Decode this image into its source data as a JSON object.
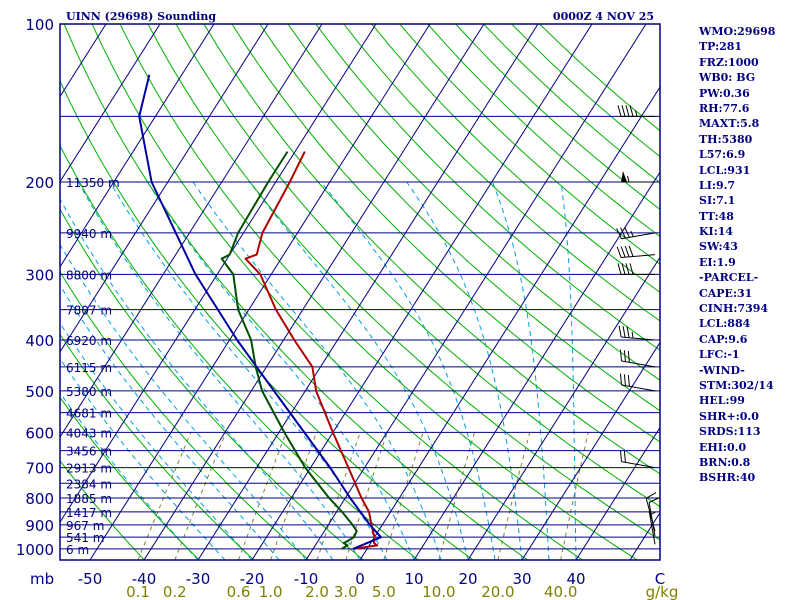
{
  "title": "UINN (29698) Sounding",
  "datetime": "0000Z  4 NOV 25",
  "units_label": "mb",
  "mixing_ratio_unit": "g/kg",
  "colors": {
    "frame": "#000080",
    "isobar": "#000080",
    "isotherm": "#000080",
    "dry_adiabat": "#00b000",
    "moist_adiabat": "#00a0e0",
    "mixing_ratio": "#808040",
    "temperature": "#b00000",
    "dewpoint": "#005000",
    "parcel": "#0000a0",
    "wind": "#000000",
    "text": "#000080",
    "ticks": "#808000"
  },
  "chart_data": {
    "type": "skew-t log-p sounding",
    "title": "UINN (29698) Sounding",
    "pressure_axis": {
      "label": "mb",
      "ticks": [
        100,
        200,
        300,
        400,
        500,
        600,
        700,
        800,
        900,
        1000
      ],
      "range_mb": [
        1050,
        100
      ]
    },
    "temperature_axis": {
      "label": "C",
      "ticks": [
        -50,
        -40,
        -30,
        -20,
        -10,
        0,
        10,
        20,
        30,
        40
      ],
      "tick_labels": [
        "-50",
        "-40",
        "-30",
        "-20",
        "-10",
        "0",
        "10",
        "20",
        "30",
        "40"
      ]
    },
    "height_levels": [
      {
        "p": 200,
        "label": "11350 m"
      },
      {
        "p": 250,
        "label": "9940 m"
      },
      {
        "p": 300,
        "label": "8800 m"
      },
      {
        "p": 350,
        "label": "7807 m"
      },
      {
        "p": 400,
        "label": "6920 m"
      },
      {
        "p": 450,
        "label": "6115 m"
      },
      {
        "p": 500,
        "label": "5380 m"
      },
      {
        "p": 550,
        "label": "4681 m"
      },
      {
        "p": 600,
        "label": "4043 m"
      },
      {
        "p": 650,
        "label": "3456 m"
      },
      {
        "p": 700,
        "label": "2913 m"
      },
      {
        "p": 750,
        "label": "2384 m"
      },
      {
        "p": 800,
        "label": "1885 m"
      },
      {
        "p": 850,
        "label": "1417 m"
      },
      {
        "p": 900,
        "label": "967 m"
      },
      {
        "p": 950,
        "label": "541 m"
      },
      {
        "p": 1000,
        "label": "6 m"
      }
    ],
    "mixing_ratio_lines": [
      {
        "w": 0.1,
        "label": "0.1"
      },
      {
        "w": 0.2,
        "label": "0.2"
      },
      {
        "w": 0.6,
        "label": "0.6"
      },
      {
        "w": 1.0,
        "label": "1.0"
      },
      {
        "w": 2.0,
        "label": "2.0"
      },
      {
        "w": 3.0,
        "label": "3.0"
      },
      {
        "w": 5.0,
        "label": "5.0"
      },
      {
        "w": 10.0,
        "label": "10.0"
      },
      {
        "w": 20.0,
        "label": "20.0"
      },
      {
        "w": 40.0,
        "label": "40.0"
      }
    ],
    "series": [
      {
        "name": "temperature",
        "points": [
          {
            "p": 1000,
            "t": -2.6
          },
          {
            "p": 985,
            "t": 1.5
          },
          {
            "p": 975,
            "t": 0.6
          },
          {
            "p": 950,
            "t": 0.0
          },
          {
            "p": 925,
            "t": -1.0
          },
          {
            "p": 900,
            "t": -2.0
          },
          {
            "p": 850,
            "t": -4.0
          },
          {
            "p": 800,
            "t": -7.0
          },
          {
            "p": 700,
            "t": -13.0
          },
          {
            "p": 600,
            "t": -20.0
          },
          {
            "p": 500,
            "t": -28.0
          },
          {
            "p": 450,
            "t": -31.5
          },
          {
            "p": 400,
            "t": -38.0
          },
          {
            "p": 350,
            "t": -45.0
          },
          {
            "p": 300,
            "t": -52.0
          },
          {
            "p": 280,
            "t": -56.6
          },
          {
            "p": 275,
            "t": -55.0
          },
          {
            "p": 250,
            "t": -56.5
          },
          {
            "p": 200,
            "t": -57.4
          },
          {
            "p": 175,
            "t": -58.2
          }
        ]
      },
      {
        "name": "dewpoint",
        "points": [
          {
            "p": 1000,
            "t": -4.7
          },
          {
            "p": 985,
            "t": -4.0
          },
          {
            "p": 975,
            "t": -5.0
          },
          {
            "p": 950,
            "t": -3.8
          },
          {
            "p": 925,
            "t": -4.0
          },
          {
            "p": 900,
            "t": -5.5
          },
          {
            "p": 850,
            "t": -9.0
          },
          {
            "p": 800,
            "t": -13.0
          },
          {
            "p": 700,
            "t": -21.0
          },
          {
            "p": 600,
            "t": -29.0
          },
          {
            "p": 500,
            "t": -38.0
          },
          {
            "p": 450,
            "t": -42.0
          },
          {
            "p": 400,
            "t": -46.0
          },
          {
            "p": 350,
            "t": -52.0
          },
          {
            "p": 300,
            "t": -57.0
          },
          {
            "p": 280,
            "t": -61.0
          },
          {
            "p": 275,
            "t": -60.0
          },
          {
            "p": 250,
            "t": -61.0
          },
          {
            "p": 200,
            "t": -61.4
          },
          {
            "p": 175,
            "t": -61.4
          }
        ]
      },
      {
        "name": "parcel",
        "points": [
          {
            "p": 1000,
            "t": -2.6
          },
          {
            "p": 950,
            "t": 1.2
          },
          {
            "p": 900,
            "t": -2.3
          },
          {
            "p": 850,
            "t": -5.6
          },
          {
            "p": 800,
            "t": -9.1
          },
          {
            "p": 700,
            "t": -16.4
          },
          {
            "p": 600,
            "t": -25.3
          },
          {
            "p": 500,
            "t": -35.8
          },
          {
            "p": 400,
            "t": -48.6
          },
          {
            "p": 300,
            "t": -64.0
          },
          {
            "p": 200,
            "t": -83.0
          },
          {
            "p": 150,
            "t": -93.0
          },
          {
            "p": 125,
            "t": -96.0
          }
        ]
      }
    ],
    "wind_barbs": [
      {
        "p": 980,
        "dir": 350,
        "spd": 5
      },
      {
        "p": 945,
        "dir": 350,
        "spd": 10
      },
      {
        "p": 925,
        "dir": 345,
        "spd": 10
      },
      {
        "p": 700,
        "dir": 280,
        "spd": 20
      },
      {
        "p": 500,
        "dir": 280,
        "spd": 30
      },
      {
        "p": 450,
        "dir": 280,
        "spd": 30
      },
      {
        "p": 400,
        "dir": 275,
        "spd": 35
      },
      {
        "p": 300,
        "dir": 270,
        "spd": 40
      },
      {
        "p": 275,
        "dir": 265,
        "spd": 40
      },
      {
        "p": 250,
        "dir": 260,
        "spd": 35
      },
      {
        "p": 200,
        "dir": 270,
        "spd": 55
      },
      {
        "p": 150,
        "dir": 270,
        "spd": 45
      }
    ]
  },
  "indices": [
    "WMO:29698",
    "TP:281",
    "FRZ:1000",
    "WB0: BG",
    "PW:0.36",
    "RH:77.6",
    "MAXT:5.8",
    "TH:5380",
    "L57:6.9",
    "LCL:931",
    "LI:9.7",
    "SI:7.1",
    "TT:48",
    "KI:14",
    "SW:43",
    "EI:1.9",
    "-PARCEL-",
    "CAPE:31",
    "CINH:7394",
    "LCL:884",
    "CAP:9.6",
    "LFC:-1",
    "-WIND-",
    "STM:302/14",
    "HEL:99",
    "SHR+:0.0",
    "SRDS:113",
    "EHI:0.0",
    "BRN:0.8",
    "BSHR:40"
  ]
}
